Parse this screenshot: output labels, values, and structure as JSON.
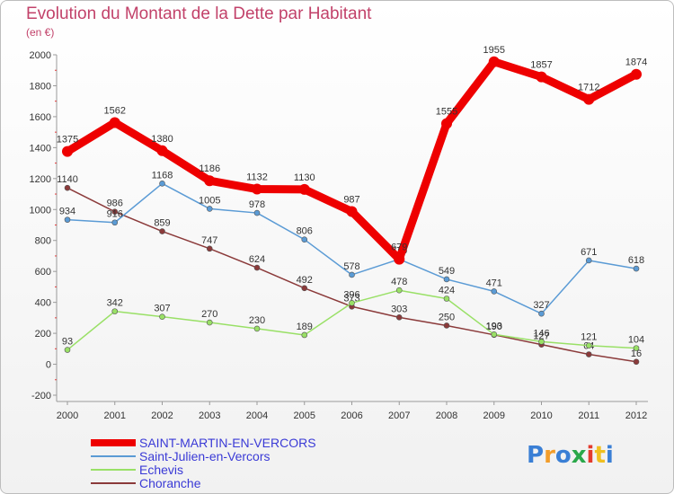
{
  "chart_data": {
    "type": "line",
    "title": "Evolution du Montant de la Dette par Habitant",
    "subtitle": "(en €)",
    "categories": [
      "2000",
      "2001",
      "2002",
      "2003",
      "2004",
      "2005",
      "2006",
      "2007",
      "2008",
      "2009",
      "2010",
      "2011",
      "2012"
    ],
    "ylim": [
      -200,
      2000
    ],
    "yticks": [
      -200,
      0,
      200,
      400,
      600,
      800,
      1000,
      1200,
      1400,
      1600,
      1800,
      2000
    ],
    "grid": false,
    "legend_position": "bottom-left",
    "series": [
      {
        "name": "SAINT-MARTIN-EN-VERCORS",
        "color": "#ee0000",
        "values": [
          1375,
          1562,
          1380,
          1186,
          1132,
          1130,
          987,
          679,
          1555,
          1955,
          1857,
          1712,
          1874
        ]
      },
      {
        "name": "Saint-Julien-en-Vercors",
        "color": "#5b9bd5",
        "values": [
          934,
          916,
          1168,
          1005,
          978,
          806,
          578,
          679,
          549,
          471,
          327,
          671,
          618
        ]
      },
      {
        "name": "Echevis",
        "color": "#99e066",
        "values": [
          93,
          342,
          307,
          270,
          230,
          189,
          396,
          478,
          424,
          193,
          146,
          121,
          104
        ]
      },
      {
        "name": "Choranche",
        "color": "#8b3a3a",
        "values": [
          1140,
          986,
          859,
          747,
          624,
          492,
          373,
          303,
          250,
          190,
          127,
          64,
          16
        ]
      }
    ]
  },
  "brand": {
    "letters": [
      "P",
      "r",
      "o",
      "x",
      "i",
      "t",
      "i"
    ],
    "colors": [
      "#3a7fd5",
      "#f29d2a",
      "#3a7fd5",
      "#2aa84a",
      "#e33b2d",
      "#f0c020",
      "#3a7fd5"
    ]
  }
}
